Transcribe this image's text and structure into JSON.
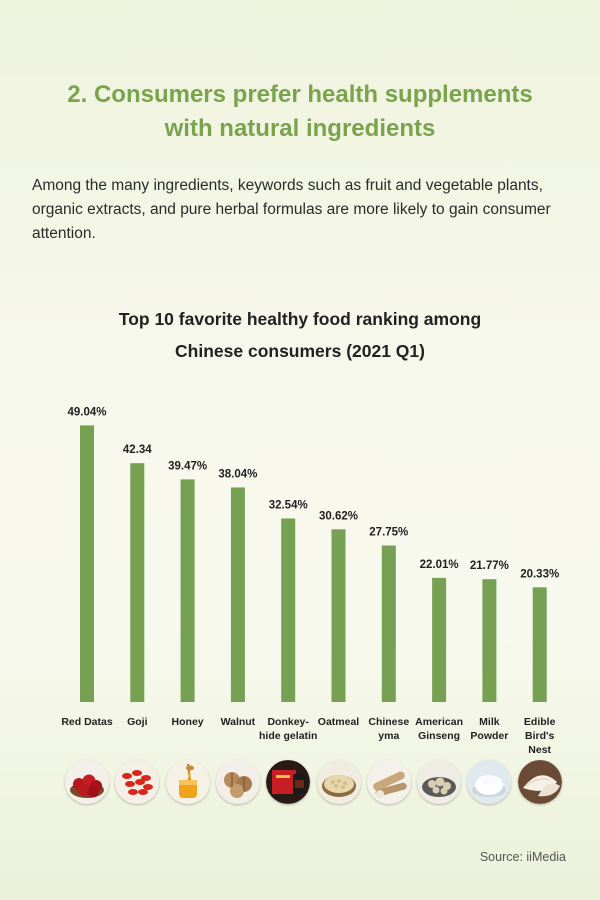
{
  "heading": {
    "line1": "2. Consumers prefer health supplements",
    "line2": "with natural ingredients"
  },
  "intro": "Among the many ingredients, keywords such as fruit and vegetable plants, organic extracts, and pure herbal formulas are more likely to gain consumer attention.",
  "chart_data": {
    "type": "bar",
    "title_line1": "Top 10 favorite healthy food ranking among",
    "title_line2": "Chinese consumers (2021 Q1)",
    "categories": [
      [
        "Red Datas"
      ],
      [
        "Goji"
      ],
      [
        "Honey"
      ],
      [
        "Walnut"
      ],
      [
        "Donkey-",
        "hide gelatin"
      ],
      [
        "Oatmeal"
      ],
      [
        "Chinese",
        "yma"
      ],
      [
        "American",
        "Ginseng"
      ],
      [
        "Milk",
        "Powder"
      ],
      [
        "Edible Bird's",
        "Nest"
      ]
    ],
    "values": [
      49.04,
      42.34,
      39.47,
      38.04,
      32.54,
      30.62,
      27.75,
      22.01,
      21.77,
      20.33
    ],
    "labels": [
      "49.04%",
      "42.34",
      "39.47%",
      "38.04%",
      "32.54%",
      "30.62%",
      "27.75%",
      "22.01%",
      "21.77%",
      "20.33%"
    ],
    "ylim": [
      0,
      50
    ],
    "bar_color": "#76a152"
  },
  "food_icons": [
    "red-dates-icon",
    "goji-icon",
    "honey-icon",
    "walnut-icon",
    "donkey-hide-gelatin-icon",
    "oatmeal-icon",
    "chinese-yam-icon",
    "american-ginseng-icon",
    "milk-powder-icon",
    "birds-nest-icon"
  ],
  "source": "Source: iiMedia"
}
